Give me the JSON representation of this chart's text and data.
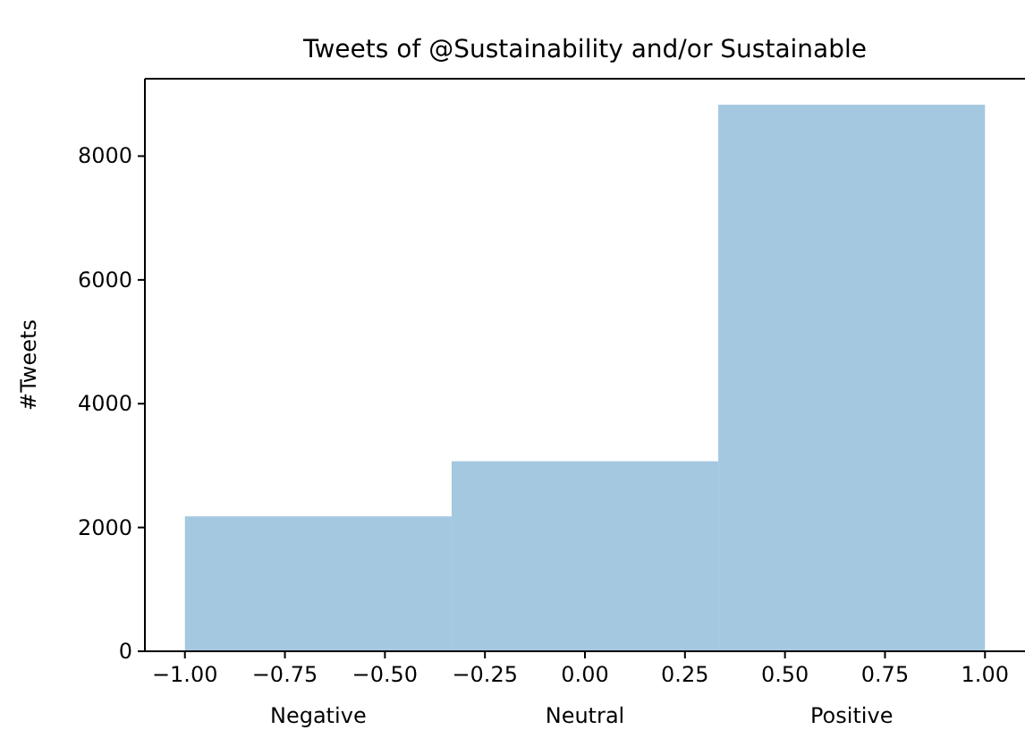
{
  "chart_data": {
    "type": "histogram",
    "title": "Tweets of @Sustainability and/or Sustainable",
    "ylabel": "#Tweets",
    "bins": [
      -1,
      -0.3333,
      0.3333,
      1
    ],
    "values": [
      2180,
      3070,
      8830
    ],
    "color": "#a5c8e1",
    "xlim": [
      -1.1,
      1.1
    ],
    "xticks": [
      {
        "value": -1,
        "label": "−1.00"
      },
      {
        "value": -0.75,
        "label": "−0.75"
      },
      {
        "value": -0.5,
        "label": "−0.50"
      },
      {
        "value": -0.25,
        "label": "−0.25"
      },
      {
        "value": 0,
        "label": "0.00"
      },
      {
        "value": 0.25,
        "label": "0.25"
      },
      {
        "value": 0.5,
        "label": "0.50"
      },
      {
        "value": 0.75,
        "label": "0.75"
      },
      {
        "value": 1,
        "label": "1.00"
      }
    ],
    "ylim": [
      0,
      9250
    ],
    "yticks": [
      0,
      2000,
      4000,
      6000,
      8000
    ],
    "annotations": [
      "Negative",
      "Neutral",
      "Positive"
    ]
  }
}
